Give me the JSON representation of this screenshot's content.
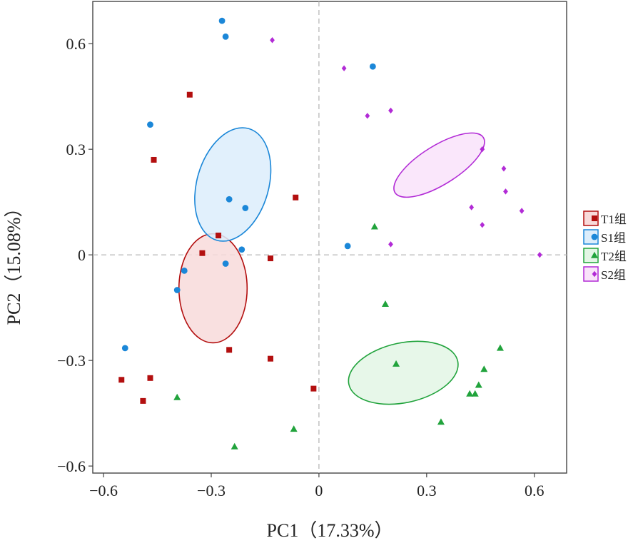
{
  "chart_data": {
    "type": "scatter",
    "xlabel": "PC1（17.33%）",
    "ylabel": "PC2（15.08%）",
    "xlim": [
      -0.63,
      0.69
    ],
    "ylim": [
      -0.62,
      0.72
    ],
    "xticks": [
      -0.6,
      -0.3,
      0,
      0.3,
      0.6
    ],
    "xtick_labels": [
      "−0.6",
      "−0.3",
      "0",
      "0.3",
      "0.6"
    ],
    "yticks": [
      -0.6,
      -0.3,
      0,
      0.3,
      0.6
    ],
    "ytick_labels": [
      "−0.6",
      "−0.3",
      "0",
      "0.3",
      "0.6"
    ],
    "reference_lines": {
      "x": 0,
      "y": 0,
      "style": "dashed"
    },
    "legend_position": "right",
    "series": [
      {
        "name": "T1组",
        "marker": "square",
        "color": "#b30f0f",
        "fill": "#f8dada",
        "points": [
          [
            -0.36,
            0.455
          ],
          [
            -0.46,
            0.27
          ],
          [
            -0.55,
            -0.355
          ],
          [
            -0.47,
            -0.35
          ],
          [
            -0.49,
            -0.415
          ],
          [
            -0.325,
            0.005
          ],
          [
            -0.28,
            0.055
          ],
          [
            -0.25,
            -0.27
          ],
          [
            -0.135,
            -0.01
          ],
          [
            -0.135,
            -0.295
          ],
          [
            -0.065,
            0.163
          ],
          [
            -0.015,
            -0.38
          ]
        ],
        "ellipse": {
          "cx": -0.295,
          "cy": -0.095,
          "rx": 0.095,
          "ry": 0.155,
          "angle": 0
        }
      },
      {
        "name": "S1组",
        "marker": "circle",
        "color": "#1b87d8",
        "fill": "#dcedfb",
        "points": [
          [
            -0.27,
            0.665
          ],
          [
            -0.26,
            0.62
          ],
          [
            -0.47,
            0.37
          ],
          [
            -0.25,
            0.158
          ],
          [
            -0.205,
            0.133
          ],
          [
            -0.215,
            0.015
          ],
          [
            -0.26,
            -0.025
          ],
          [
            -0.375,
            -0.045
          ],
          [
            -0.395,
            -0.1
          ],
          [
            -0.54,
            -0.265
          ],
          [
            0.08,
            0.025
          ],
          [
            0.15,
            0.535
          ]
        ],
        "ellipse": {
          "cx": -0.24,
          "cy": 0.2,
          "rx": 0.1,
          "ry": 0.165,
          "angle": 16
        }
      },
      {
        "name": "T2组",
        "marker": "triangle",
        "color": "#21a33c",
        "fill": "#e3f6e5",
        "points": [
          [
            0.155,
            0.08
          ],
          [
            0.185,
            -0.14
          ],
          [
            0.215,
            -0.31
          ],
          [
            0.34,
            -0.475
          ],
          [
            0.42,
            -0.395
          ],
          [
            0.435,
            -0.395
          ],
          [
            0.445,
            -0.37
          ],
          [
            0.46,
            -0.325
          ],
          [
            0.505,
            -0.265
          ],
          [
            -0.395,
            -0.405
          ],
          [
            -0.07,
            -0.495
          ],
          [
            -0.235,
            -0.545
          ]
        ],
        "ellipse": {
          "cx": 0.235,
          "cy": -0.335,
          "rx": 0.155,
          "ry": 0.085,
          "angle": -12
        }
      },
      {
        "name": "S2组",
        "marker": "diamond",
        "color": "#b22bd6",
        "fill": "#f9e3fa",
        "points": [
          [
            -0.13,
            0.61
          ],
          [
            0.07,
            0.53
          ],
          [
            0.135,
            0.395
          ],
          [
            0.2,
            0.41
          ],
          [
            0.455,
            0.3
          ],
          [
            0.515,
            0.245
          ],
          [
            0.52,
            0.18
          ],
          [
            0.565,
            0.125
          ],
          [
            0.425,
            0.135
          ],
          [
            0.455,
            0.085
          ],
          [
            0.2,
            0.03
          ],
          [
            0.615,
            0.0
          ]
        ],
        "ellipse": {
          "cx": 0.335,
          "cy": 0.255,
          "rx": 0.145,
          "ry": 0.055,
          "angle": -32
        }
      }
    ]
  }
}
